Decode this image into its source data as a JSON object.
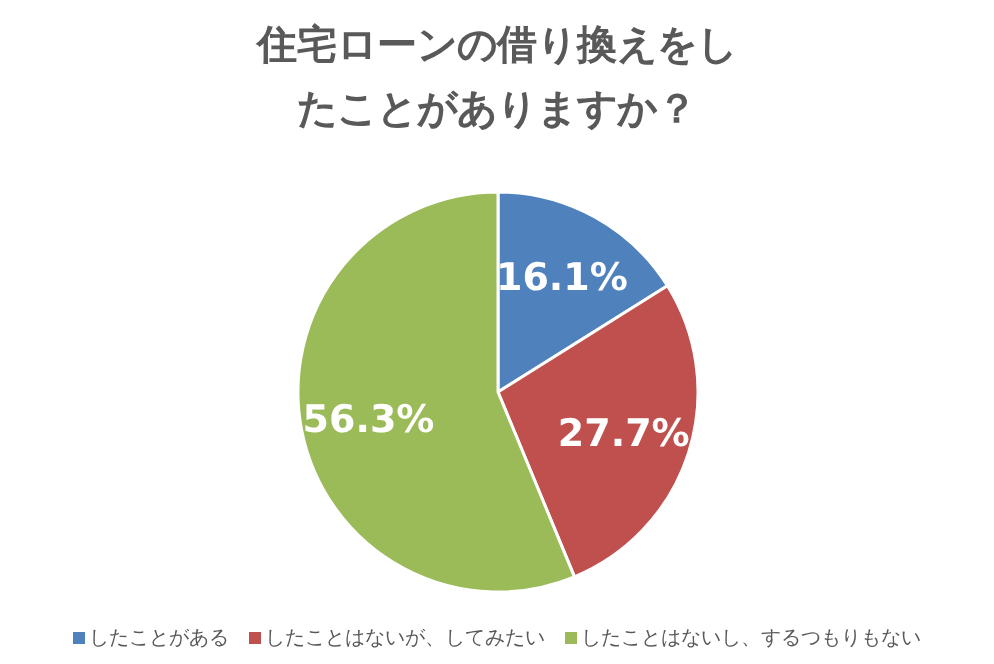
{
  "chart_data": {
    "type": "pie",
    "title": "住宅ローンの借り換えをしたことがありますか？",
    "categories": [
      "したことがある",
      "したことはないが、してみたい",
      "したことはないし、するつもりもない"
    ],
    "values": [
      16.1,
      27.7,
      56.3
    ],
    "value_labels": [
      "16.1%",
      "27.7%",
      "56.3%"
    ],
    "colors": [
      "#4f81bd",
      "#c0504d",
      "#9bbb59"
    ],
    "legend": "bottom"
  }
}
